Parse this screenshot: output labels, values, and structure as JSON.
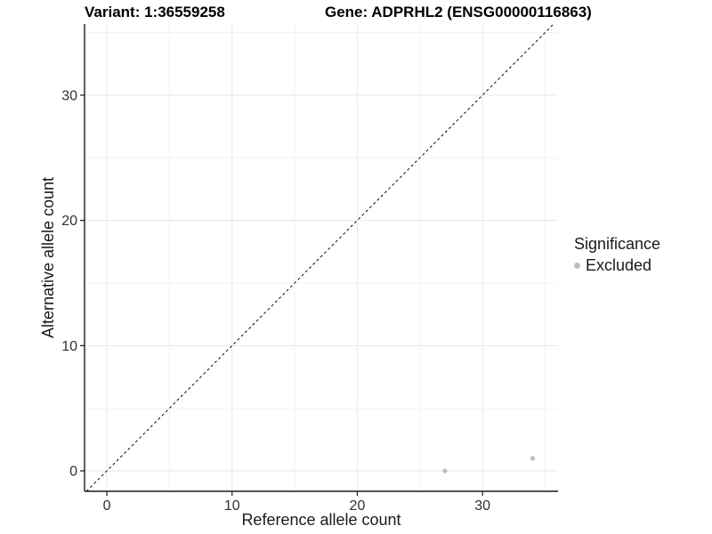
{
  "chart_data": {
    "type": "scatter",
    "title_left": "Variant: 1:36559258",
    "title_right": "Gene: ADPRHL2 (ENSG00000116863)",
    "xlabel": "Reference allele count",
    "ylabel": "Alternative allele count",
    "xlim": [
      -1.78,
      36.03
    ],
    "ylim": [
      -1.63,
      35.68
    ],
    "x_ticks": [
      0,
      10,
      20,
      30
    ],
    "y_ticks": [
      0,
      10,
      20,
      30
    ],
    "x_minor_gridlines": [
      5,
      15,
      25,
      35
    ],
    "y_minor_gridlines": [
      5,
      15,
      25,
      35
    ],
    "grid": "major+minor",
    "legend_title": "Significance",
    "legend_position": "right",
    "series": [
      {
        "name": "Excluded",
        "color": "#bebebe",
        "marker": "circle",
        "points": [
          {
            "x": 27,
            "y": 0
          },
          {
            "x": 34,
            "y": 1
          }
        ]
      }
    ],
    "reference_line": {
      "description": "identity line y = x",
      "slope": 1,
      "intercept": 0,
      "linetype": "dashed",
      "color": "#1a1a1a"
    },
    "colors": {
      "axis_line": "#1a1a1a",
      "tick_text": "#303030",
      "grid_major": "#e7e7e7",
      "grid_minor": "#f3f3f3",
      "title_text": "#000000"
    }
  }
}
